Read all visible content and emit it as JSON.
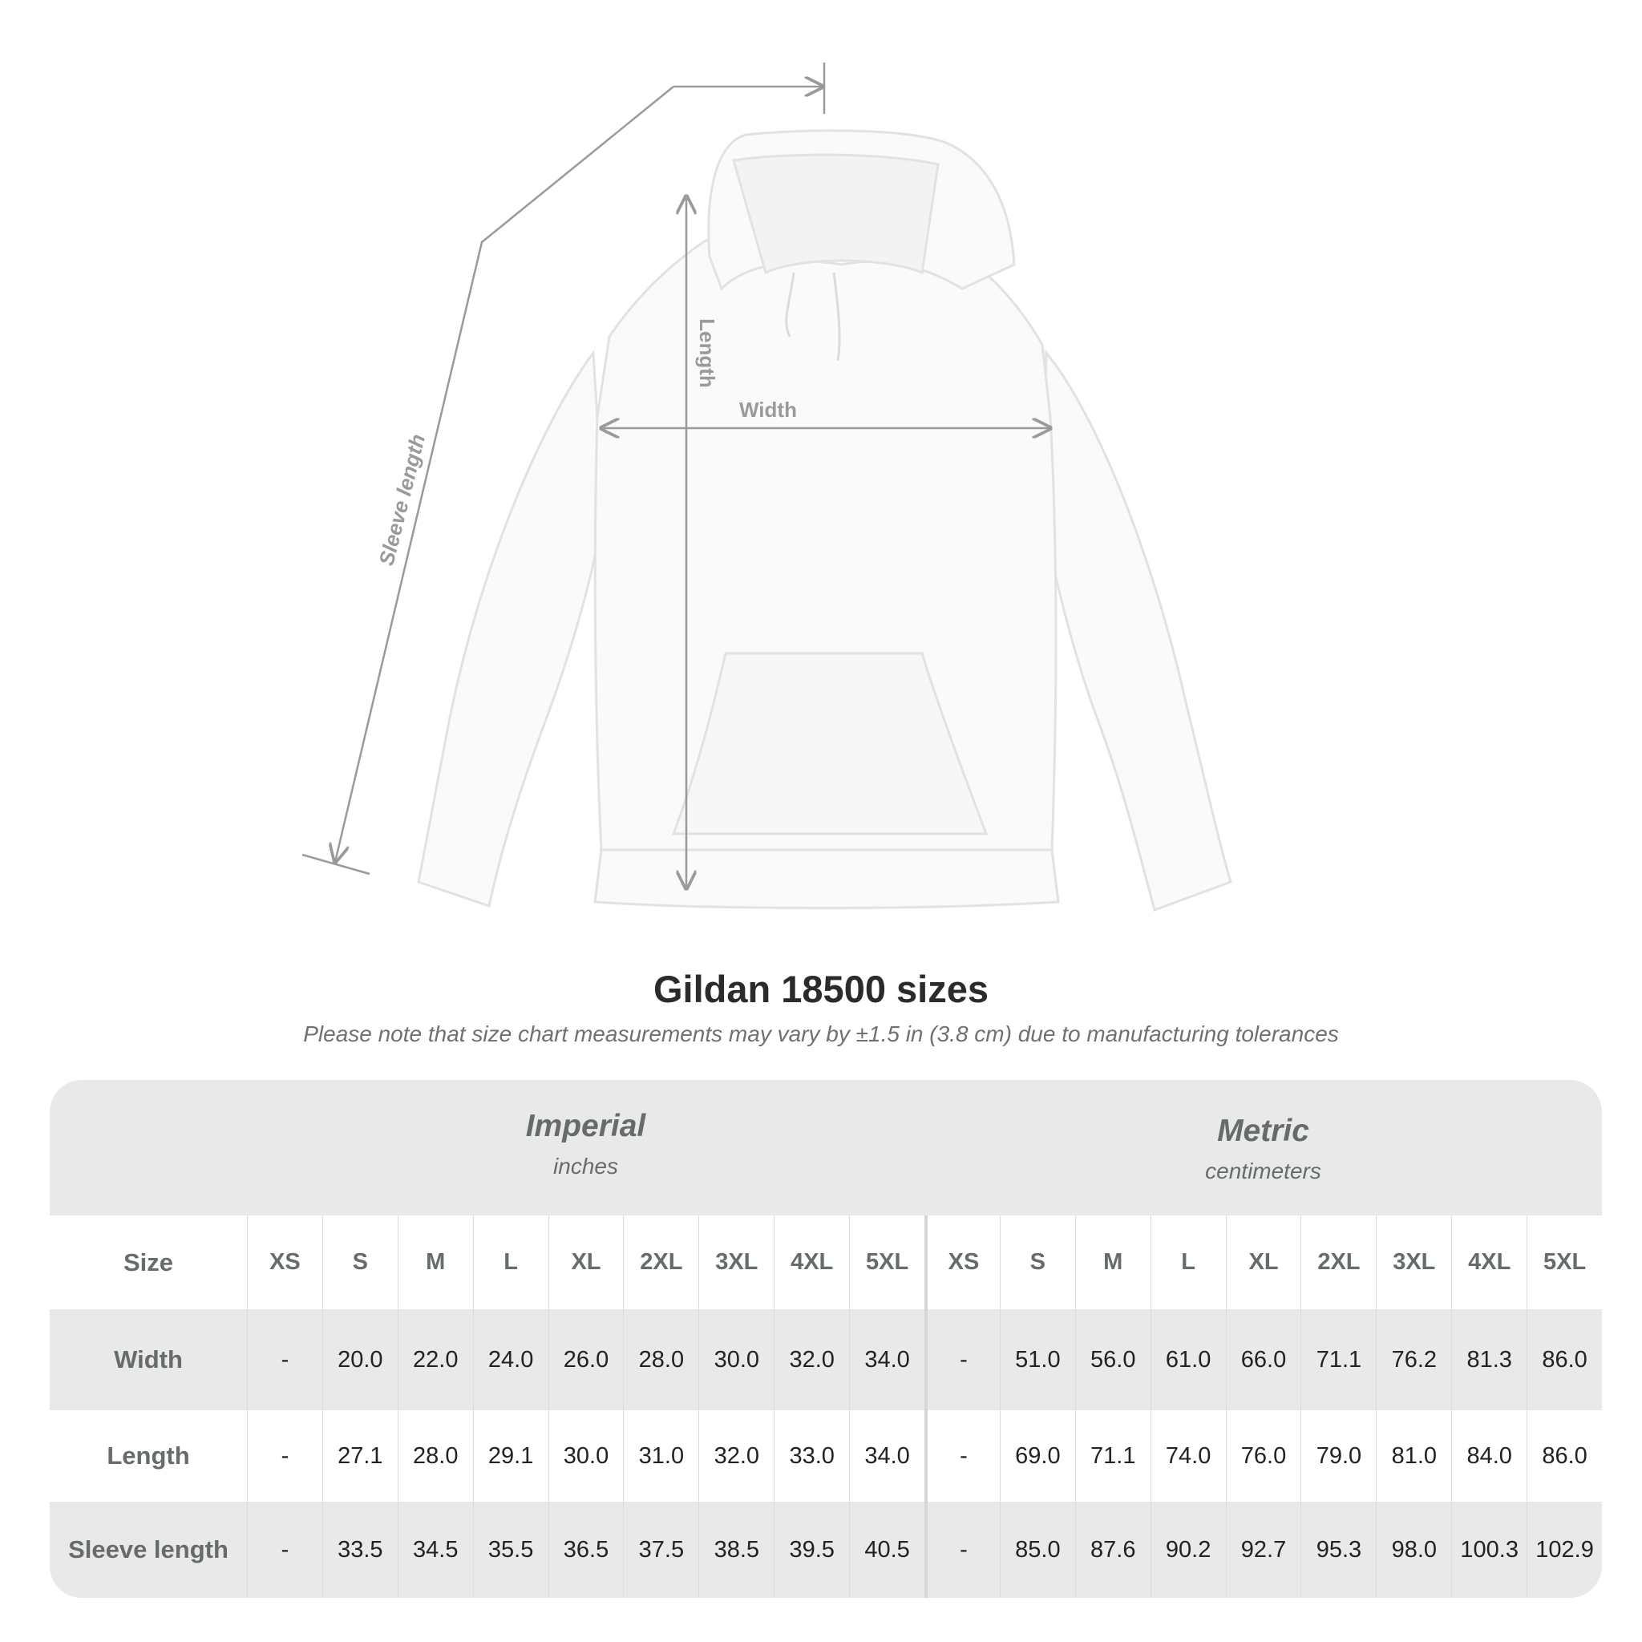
{
  "diagram": {
    "labels": {
      "length": "Length",
      "width": "Width",
      "sleeve": "Sleeve length"
    },
    "colors": {
      "garment": "#fafafa",
      "measure_line": "#9a9a9a"
    }
  },
  "title": "Gildan 18500 sizes",
  "subtitle": "Please note that size chart measurements may vary by ±1.5 in (3.8 cm) due to manufacturing tolerances",
  "table": {
    "imperial": {
      "system": "Imperial",
      "unit": "inches"
    },
    "metric": {
      "system": "Metric",
      "unit": "centimeters"
    },
    "size_label": "Size",
    "sizes": [
      "XS",
      "S",
      "M",
      "L",
      "XL",
      "2XL",
      "3XL",
      "4XL",
      "5XL"
    ],
    "rows": [
      {
        "label": "Width",
        "imperial": [
          "-",
          "20.0",
          "22.0",
          "24.0",
          "26.0",
          "28.0",
          "30.0",
          "32.0",
          "34.0"
        ],
        "metric": [
          "-",
          "51.0",
          "56.0",
          "61.0",
          "66.0",
          "71.1",
          "76.2",
          "81.3",
          "86.0"
        ]
      },
      {
        "label": "Length",
        "imperial": [
          "-",
          "27.1",
          "28.0",
          "29.1",
          "30.0",
          "31.0",
          "32.0",
          "33.0",
          "34.0"
        ],
        "metric": [
          "-",
          "69.0",
          "71.1",
          "74.0",
          "76.0",
          "79.0",
          "81.0",
          "84.0",
          "86.0"
        ]
      },
      {
        "label": "Sleeve length",
        "imperial": [
          "-",
          "33.5",
          "34.5",
          "35.5",
          "36.5",
          "37.5",
          "38.5",
          "39.5",
          "40.5"
        ],
        "metric": [
          "-",
          "85.0",
          "87.6",
          "90.2",
          "92.7",
          "95.3",
          "98.0",
          "100.3",
          "102.9"
        ]
      }
    ]
  }
}
